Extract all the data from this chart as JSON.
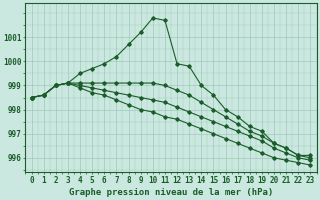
{
  "title": "Graphe pression niveau de la mer (hPa)",
  "background_color": "#cbe8e0",
  "grid_color": "#a0c8b8",
  "line_color": "#1a5c2a",
  "x": [
    0,
    1,
    2,
    3,
    4,
    5,
    6,
    7,
    8,
    9,
    10,
    11,
    12,
    13,
    14,
    15,
    16,
    17,
    18,
    19,
    20,
    21,
    22,
    23
  ],
  "series": [
    [
      998.5,
      998.6,
      999.0,
      999.1,
      999.5,
      999.7,
      999.9,
      1000.2,
      1000.7,
      1001.2,
      1001.8,
      1001.7,
      999.9,
      999.8,
      999.0,
      998.6,
      998.0,
      997.7,
      997.3,
      997.1,
      996.6,
      996.4,
      996.1,
      996.1
    ],
    [
      998.5,
      998.6,
      999.0,
      999.1,
      999.1,
      999.1,
      999.1,
      999.1,
      999.1,
      999.1,
      999.1,
      999.0,
      998.8,
      998.6,
      998.3,
      998.0,
      997.7,
      997.4,
      997.1,
      996.9,
      996.6,
      996.4,
      996.1,
      996.0
    ],
    [
      998.5,
      998.6,
      999.0,
      999.1,
      999.0,
      998.9,
      998.8,
      998.7,
      998.6,
      998.5,
      998.4,
      998.3,
      998.1,
      997.9,
      997.7,
      997.5,
      997.3,
      997.1,
      996.9,
      996.7,
      996.4,
      996.2,
      996.0,
      995.9
    ],
    [
      998.5,
      998.6,
      999.0,
      999.1,
      998.9,
      998.7,
      998.6,
      998.4,
      998.2,
      998.0,
      997.9,
      997.7,
      997.6,
      997.4,
      997.2,
      997.0,
      996.8,
      996.6,
      996.4,
      996.2,
      996.0,
      995.9,
      995.8,
      995.7
    ]
  ],
  "ylim": [
    995.4,
    1002.4
  ],
  "yticks": [
    996,
    997,
    998,
    999,
    1000,
    1001
  ],
  "tick_fontsize": 5.5,
  "xlabel_fontsize": 6.5
}
